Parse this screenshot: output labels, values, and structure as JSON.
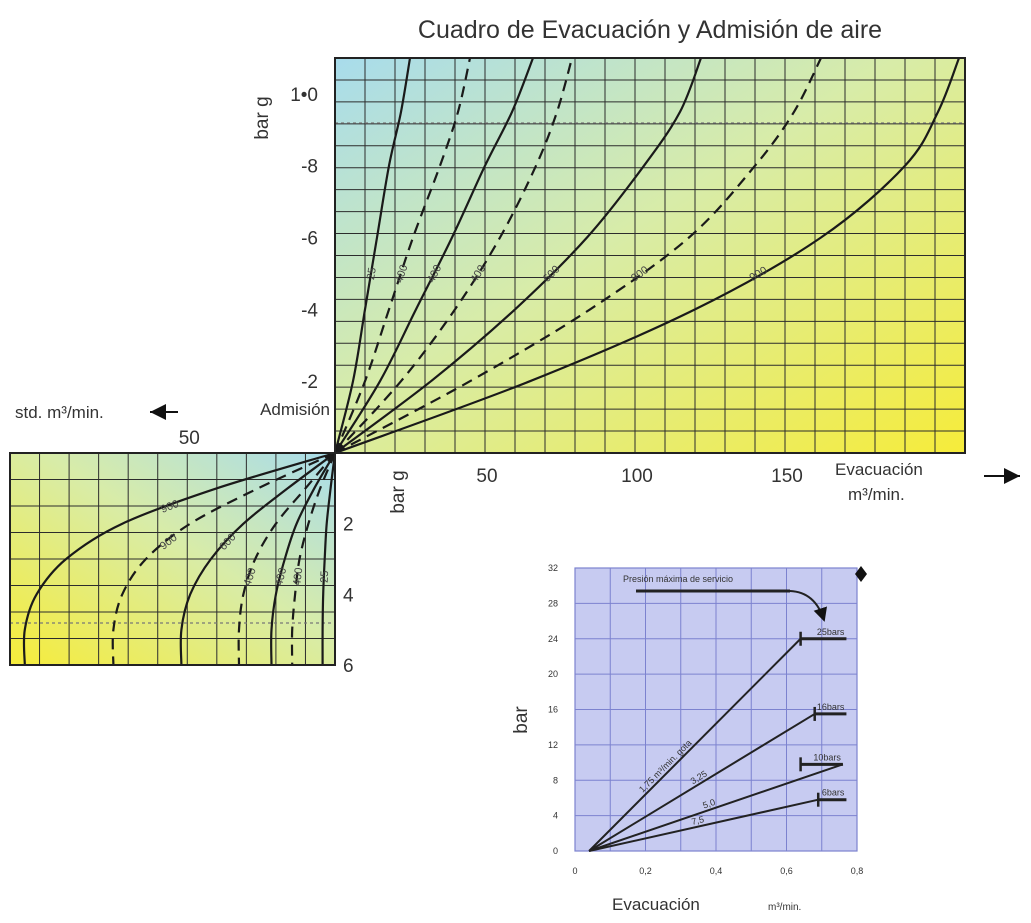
{
  "title": "Cuadro de Evacuación y Admisión de aire",
  "chart_data": [
    {
      "type": "line",
      "panel": "evacuation",
      "xlabel": "Evacuación m³/min.",
      "xlabel_line1": "Evacuación",
      "xlabel_line2": "m³/min.",
      "ylabel": "bar g",
      "xlim": [
        0,
        210
      ],
      "ylim": [
        0,
        1.1
      ],
      "x_ticks": [
        {
          "value": 50,
          "label": "50"
        },
        {
          "value": 100,
          "label": "100"
        },
        {
          "value": 150,
          "label": "150"
        }
      ],
      "y_ticks": [
        {
          "value": 0.2,
          "label": "-2"
        },
        {
          "value": 0.4,
          "label": "-4"
        },
        {
          "value": 0.6,
          "label": "-6"
        },
        {
          "value": 0.8,
          "label": "-8"
        },
        {
          "value": 1.0,
          "label": "1•0"
        }
      ],
      "reference_line_y": 0.92,
      "series": [
        {
          "name": "25",
          "style": "solid",
          "points": [
            [
              0,
              0
            ],
            [
              6,
              0.2
            ],
            [
              10,
              0.4
            ],
            [
              14,
              0.6
            ],
            [
              18,
              0.8
            ],
            [
              22,
              0.95
            ],
            [
              25,
              1.1
            ]
          ]
        },
        {
          "name": "400",
          "style": "dashed",
          "points": [
            [
              0,
              0
            ],
            [
              10,
              0.2
            ],
            [
              18,
              0.4
            ],
            [
              26,
              0.6
            ],
            [
              35,
              0.8
            ],
            [
              41,
              0.95
            ],
            [
              45,
              1.1
            ]
          ]
        },
        {
          "name": "400",
          "style": "solid",
          "points": [
            [
              0,
              0
            ],
            [
              15,
              0.2
            ],
            [
              27,
              0.4
            ],
            [
              39,
              0.6
            ],
            [
              50,
              0.8
            ],
            [
              59,
              0.95
            ],
            [
              66,
              1.1
            ]
          ]
        },
        {
          "name": "400",
          "style": "dashed",
          "points": [
            [
              0,
              0
            ],
            [
              22,
              0.2
            ],
            [
              40,
              0.4
            ],
            [
              55,
              0.6
            ],
            [
              67,
              0.8
            ],
            [
              74,
              0.95
            ],
            [
              79,
              1.1
            ]
          ]
        },
        {
          "name": "600",
          "style": "solid",
          "points": [
            [
              0,
              0
            ],
            [
              32,
              0.2
            ],
            [
              60,
              0.4
            ],
            [
              84,
              0.6
            ],
            [
              103,
              0.8
            ],
            [
              115,
              0.95
            ],
            [
              122,
              1.1
            ]
          ]
        },
        {
          "name": "900",
          "style": "dashed",
          "points": [
            [
              0,
              0
            ],
            [
              45,
              0.2
            ],
            [
              85,
              0.4
            ],
            [
              118,
              0.6
            ],
            [
              140,
              0.8
            ],
            [
              153,
              0.95
            ],
            [
              162,
              1.1
            ]
          ]
        },
        {
          "name": "900",
          "style": "solid",
          "points": [
            [
              0,
              0
            ],
            [
              65,
              0.2
            ],
            [
              120,
              0.4
            ],
            [
              162,
              0.6
            ],
            [
              190,
              0.8
            ],
            [
              201,
              0.95
            ],
            [
              208,
              1.1
            ]
          ]
        }
      ],
      "annotations": [
        "Admisión"
      ]
    },
    {
      "type": "line",
      "panel": "admission",
      "xlabel": "std. m³/min.",
      "ylabel": "bar g",
      "xlim": [
        0,
        110
      ],
      "ylim": [
        0,
        6
      ],
      "x_ticks": [
        {
          "value": 50,
          "label": "50"
        }
      ],
      "y_ticks": [
        {
          "value": 2,
          "label": "2"
        },
        {
          "value": 4,
          "label": "4"
        },
        {
          "value": 6,
          "label": "6"
        }
      ],
      "reference_line_y": 5.0,
      "series": [
        {
          "name": "25",
          "style": "solid",
          "points": [
            [
              0,
              0
            ],
            [
              1.5,
              1
            ],
            [
              2.8,
              2
            ],
            [
              3.5,
              3
            ],
            [
              4,
              4
            ],
            [
              4.2,
              5
            ],
            [
              4.2,
              6
            ]
          ]
        },
        {
          "name": "400",
          "style": "dashed",
          "points": [
            [
              0,
              0
            ],
            [
              5,
              1
            ],
            [
              9,
              2
            ],
            [
              12,
              3
            ],
            [
              13.5,
              4
            ],
            [
              14.5,
              5
            ],
            [
              14.5,
              6
            ]
          ]
        },
        {
          "name": "400",
          "style": "solid",
          "points": [
            [
              0,
              0
            ],
            [
              7,
              1
            ],
            [
              13,
              2
            ],
            [
              17,
              3
            ],
            [
              20,
              4
            ],
            [
              21.5,
              5
            ],
            [
              21.5,
              6
            ]
          ]
        },
        {
          "name": "400",
          "style": "dashed",
          "points": [
            [
              0,
              0
            ],
            [
              10,
              1
            ],
            [
              20,
              2
            ],
            [
              27,
              3
            ],
            [
              31,
              4
            ],
            [
              32.5,
              5
            ],
            [
              32.5,
              6
            ]
          ]
        },
        {
          "name": "600",
          "style": "solid",
          "points": [
            [
              0,
              0
            ],
            [
              16,
              1
            ],
            [
              31,
              2
            ],
            [
              42,
              3
            ],
            [
              49,
              4
            ],
            [
              52,
              5
            ],
            [
              52,
              6
            ]
          ]
        },
        {
          "name": "900",
          "style": "dashed",
          "points": [
            [
              0,
              0
            ],
            [
              26,
              1
            ],
            [
              49,
              2
            ],
            [
              64,
              3
            ],
            [
              72,
              4
            ],
            [
              75,
              5
            ],
            [
              75,
              6
            ]
          ]
        },
        {
          "name": "900",
          "style": "solid",
          "points": [
            [
              0,
              0
            ],
            [
              40,
              1
            ],
            [
              72,
              2
            ],
            [
              91,
              3
            ],
            [
              101,
              4
            ],
            [
              105,
              5
            ],
            [
              105,
              6
            ]
          ]
        }
      ]
    },
    {
      "type": "line",
      "panel": "inset",
      "xlabel": "Evacuación m³/min.",
      "xlabel_main": "Evacuación",
      "xlabel_unit": "m³/min.",
      "ylabel": "bar",
      "xlim": [
        0,
        0.8
      ],
      "ylim": [
        0,
        32
      ],
      "x_ticks": [
        {
          "value": 0,
          "label": "0"
        },
        {
          "value": 0.2,
          "label": "0,2"
        },
        {
          "value": 0.4,
          "label": "0,4"
        },
        {
          "value": 0.6,
          "label": "0,6"
        },
        {
          "value": 0.8,
          "label": "0,8"
        }
      ],
      "y_ticks": [
        {
          "value": 0,
          "label": "0"
        },
        {
          "value": 4,
          "label": "4"
        },
        {
          "value": 8,
          "label": "8"
        },
        {
          "value": 12,
          "label": "12"
        },
        {
          "value": 16,
          "label": "16"
        },
        {
          "value": 20,
          "label": "20"
        },
        {
          "value": 24,
          "label": "24"
        },
        {
          "value": 28,
          "label": "28"
        },
        {
          "value": 32,
          "label": "32"
        }
      ],
      "annotation": "Presión máxima de servicio",
      "series": [
        {
          "name": "1,75 m³/min. GOTA",
          "line_label": "1,75 m³/min. gota",
          "limit": "25bars",
          "points": [
            [
              0.04,
              0
            ],
            [
              0.64,
              24
            ]
          ],
          "cap_start": 0.64,
          "cap_end": 0.77,
          "cap_y": 24
        },
        {
          "name": "3,25",
          "line_label": "3,25",
          "limit": "16bars",
          "points": [
            [
              0.04,
              0
            ],
            [
              0.68,
              15.5
            ]
          ],
          "cap_start": 0.68,
          "cap_end": 0.77,
          "cap_y": 15.5
        },
        {
          "name": "5,0",
          "line_label": "5,0",
          "limit": "10bars",
          "points": [
            [
              0.04,
              0
            ],
            [
              0.76,
              9.8
            ]
          ],
          "cap_start": 0.64,
          "cap_end": 0.76,
          "cap_y": 9.8
        },
        {
          "name": "7,5",
          "line_label": "7,5",
          "limit": "6bars",
          "points": [
            [
              0.04,
              0
            ],
            [
              0.69,
              5.8
            ]
          ],
          "cap_start": 0.69,
          "cap_end": 0.77,
          "cap_y": 5.8
        }
      ]
    }
  ],
  "colors": {
    "gradient_cyan": "#a8dcec",
    "gradient_yellow": "#f6ec3a",
    "grid": "#2c2c2c",
    "curve": "#1a1a1a",
    "inset_bg": "#c7cbf1",
    "inset_grid": "#7c82cf"
  }
}
